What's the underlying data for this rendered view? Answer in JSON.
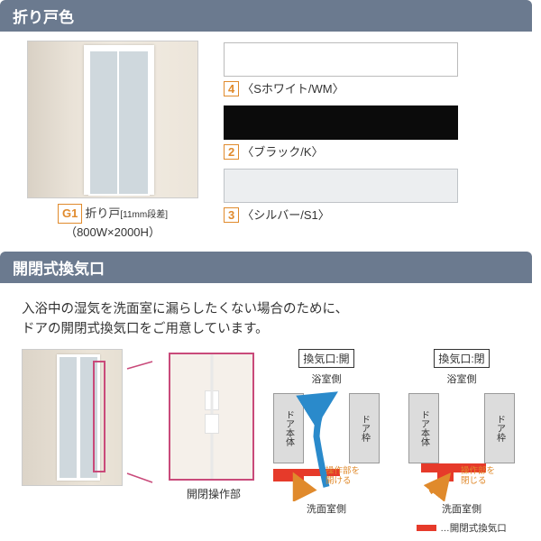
{
  "section1": {
    "title": "折り戸色",
    "door": {
      "code": "G1",
      "name": "折り戸",
      "spec_small": "[11mm段差]",
      "size": "（800W×2000H）"
    },
    "swatches": [
      {
        "num": "4",
        "label": "〈Sホワイト/WM〉",
        "color": "#ffffff",
        "border": "#bbbbbb"
      },
      {
        "num": "2",
        "label": "〈ブラック/K〉",
        "color": "#0b0b0b",
        "border": "#0b0b0b"
      },
      {
        "num": "3",
        "label": "〈シルバー/S1〉",
        "color": "#eceef0",
        "border": "#bfc3c7"
      }
    ]
  },
  "section2": {
    "title": "開閉式換気口",
    "desc": "入浴中の湿気を洗面室に漏らしたくない場合のために、\nドアの開閉式換気口をご用意しています。",
    "zoom_label": "開閉操作部",
    "diag_open": {
      "title": "換気口:開",
      "bath": "浴室側",
      "wash": "洗面室側",
      "body": "ドア本体",
      "frame": "ドア枠",
      "note": "操作部を\n開ける"
    },
    "diag_close": {
      "title": "換気口:閉",
      "bath": "浴室側",
      "wash": "洗面室側",
      "body": "ドア本体",
      "frame": "ドア枠",
      "note": "操作部を\n閉じる"
    },
    "legend": "…開閉式換気口",
    "arrow_colors": {
      "air": "#2a8acb",
      "op": "#e08a2c",
      "vent": "#e63a2a"
    }
  }
}
